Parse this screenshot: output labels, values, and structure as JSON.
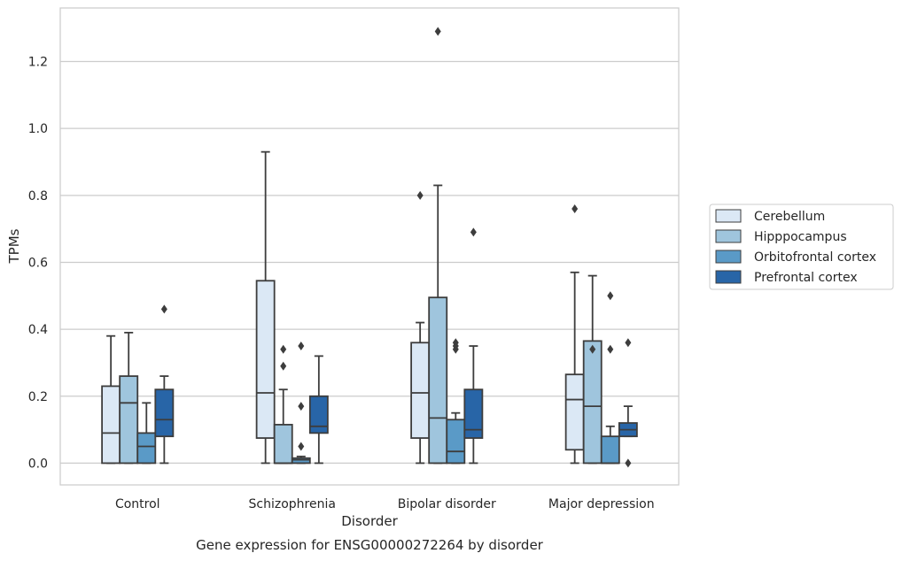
{
  "caption": "Gene expression for ENSG00000272264 by disorder",
  "chart_data": {
    "type": "box",
    "xlabel": "Disorder",
    "ylabel": "TPMs",
    "ylim": [
      -0.065,
      1.36
    ],
    "yticks": [
      "0.0",
      "0.2",
      "0.4",
      "0.6",
      "0.8",
      "1.0",
      "1.2"
    ],
    "grid": "horizontal",
    "legend_position": "right",
    "categories": [
      "Control",
      "Schizophrenia",
      "Bipolar disorder",
      "Major depression"
    ],
    "series": [
      {
        "name": "Cerebellum",
        "color": "#dbe8f5",
        "boxes": [
          {
            "min": 0.0,
            "q1": 0.0,
            "median": 0.09,
            "q3": 0.23,
            "max": 0.38,
            "outliers": []
          },
          {
            "min": 0.0,
            "q1": 0.075,
            "median": 0.21,
            "q3": 0.545,
            "max": 0.93,
            "outliers": []
          },
          {
            "min": 0.0,
            "q1": 0.075,
            "median": 0.21,
            "q3": 0.36,
            "max": 0.42,
            "outliers": [
              0.8
            ]
          },
          {
            "min": 0.0,
            "q1": 0.04,
            "median": 0.19,
            "q3": 0.265,
            "max": 0.57,
            "outliers": [
              0.76
            ]
          }
        ]
      },
      {
        "name": "Hipppocampus",
        "color": "#9fc5dd",
        "boxes": [
          {
            "min": 0.0,
            "q1": 0.0,
            "median": 0.18,
            "q3": 0.26,
            "max": 0.39,
            "outliers": []
          },
          {
            "min": 0.0,
            "q1": 0.0,
            "median": 0.0,
            "q3": 0.115,
            "max": 0.22,
            "outliers": [
              0.29,
              0.34
            ]
          },
          {
            "min": 0.0,
            "q1": 0.0,
            "median": 0.135,
            "q3": 0.495,
            "max": 0.83,
            "outliers": [
              1.29
            ]
          },
          {
            "min": 0.0,
            "q1": 0.0,
            "median": 0.17,
            "q3": 0.365,
            "max": 0.56,
            "outliers": [
              0.34
            ]
          }
        ]
      },
      {
        "name": "Orbitofrontal cortex",
        "color": "#5a9ac7",
        "boxes": [
          {
            "min": 0.0,
            "q1": 0.0,
            "median": 0.05,
            "q3": 0.09,
            "max": 0.18,
            "outliers": []
          },
          {
            "min": 0.0,
            "q1": 0.0,
            "median": 0.01,
            "q3": 0.015,
            "max": 0.02,
            "outliers": [
              0.05,
              0.17,
              0.35
            ]
          },
          {
            "min": 0.0,
            "q1": 0.0,
            "median": 0.035,
            "q3": 0.13,
            "max": 0.15,
            "outliers": [
              0.34,
              0.35,
              0.36
            ]
          },
          {
            "min": 0.0,
            "q1": 0.0,
            "median": 0.0,
            "q3": 0.08,
            "max": 0.11,
            "outliers": [
              0.34,
              0.5
            ]
          }
        ]
      },
      {
        "name": "Prefrontal cortex",
        "color": "#2865a7",
        "boxes": [
          {
            "min": 0.0,
            "q1": 0.08,
            "median": 0.13,
            "q3": 0.22,
            "max": 0.26,
            "outliers": [
              0.46
            ]
          },
          {
            "min": 0.0,
            "q1": 0.09,
            "median": 0.11,
            "q3": 0.2,
            "max": 0.32,
            "outliers": []
          },
          {
            "min": 0.0,
            "q1": 0.075,
            "median": 0.1,
            "q3": 0.22,
            "max": 0.35,
            "outliers": [
              0.69
            ]
          },
          {
            "min": 0.08,
            "q1": 0.08,
            "median": 0.1,
            "q3": 0.12,
            "max": 0.17,
            "outliers": [
              0.0,
              0.36
            ]
          }
        ]
      }
    ]
  }
}
